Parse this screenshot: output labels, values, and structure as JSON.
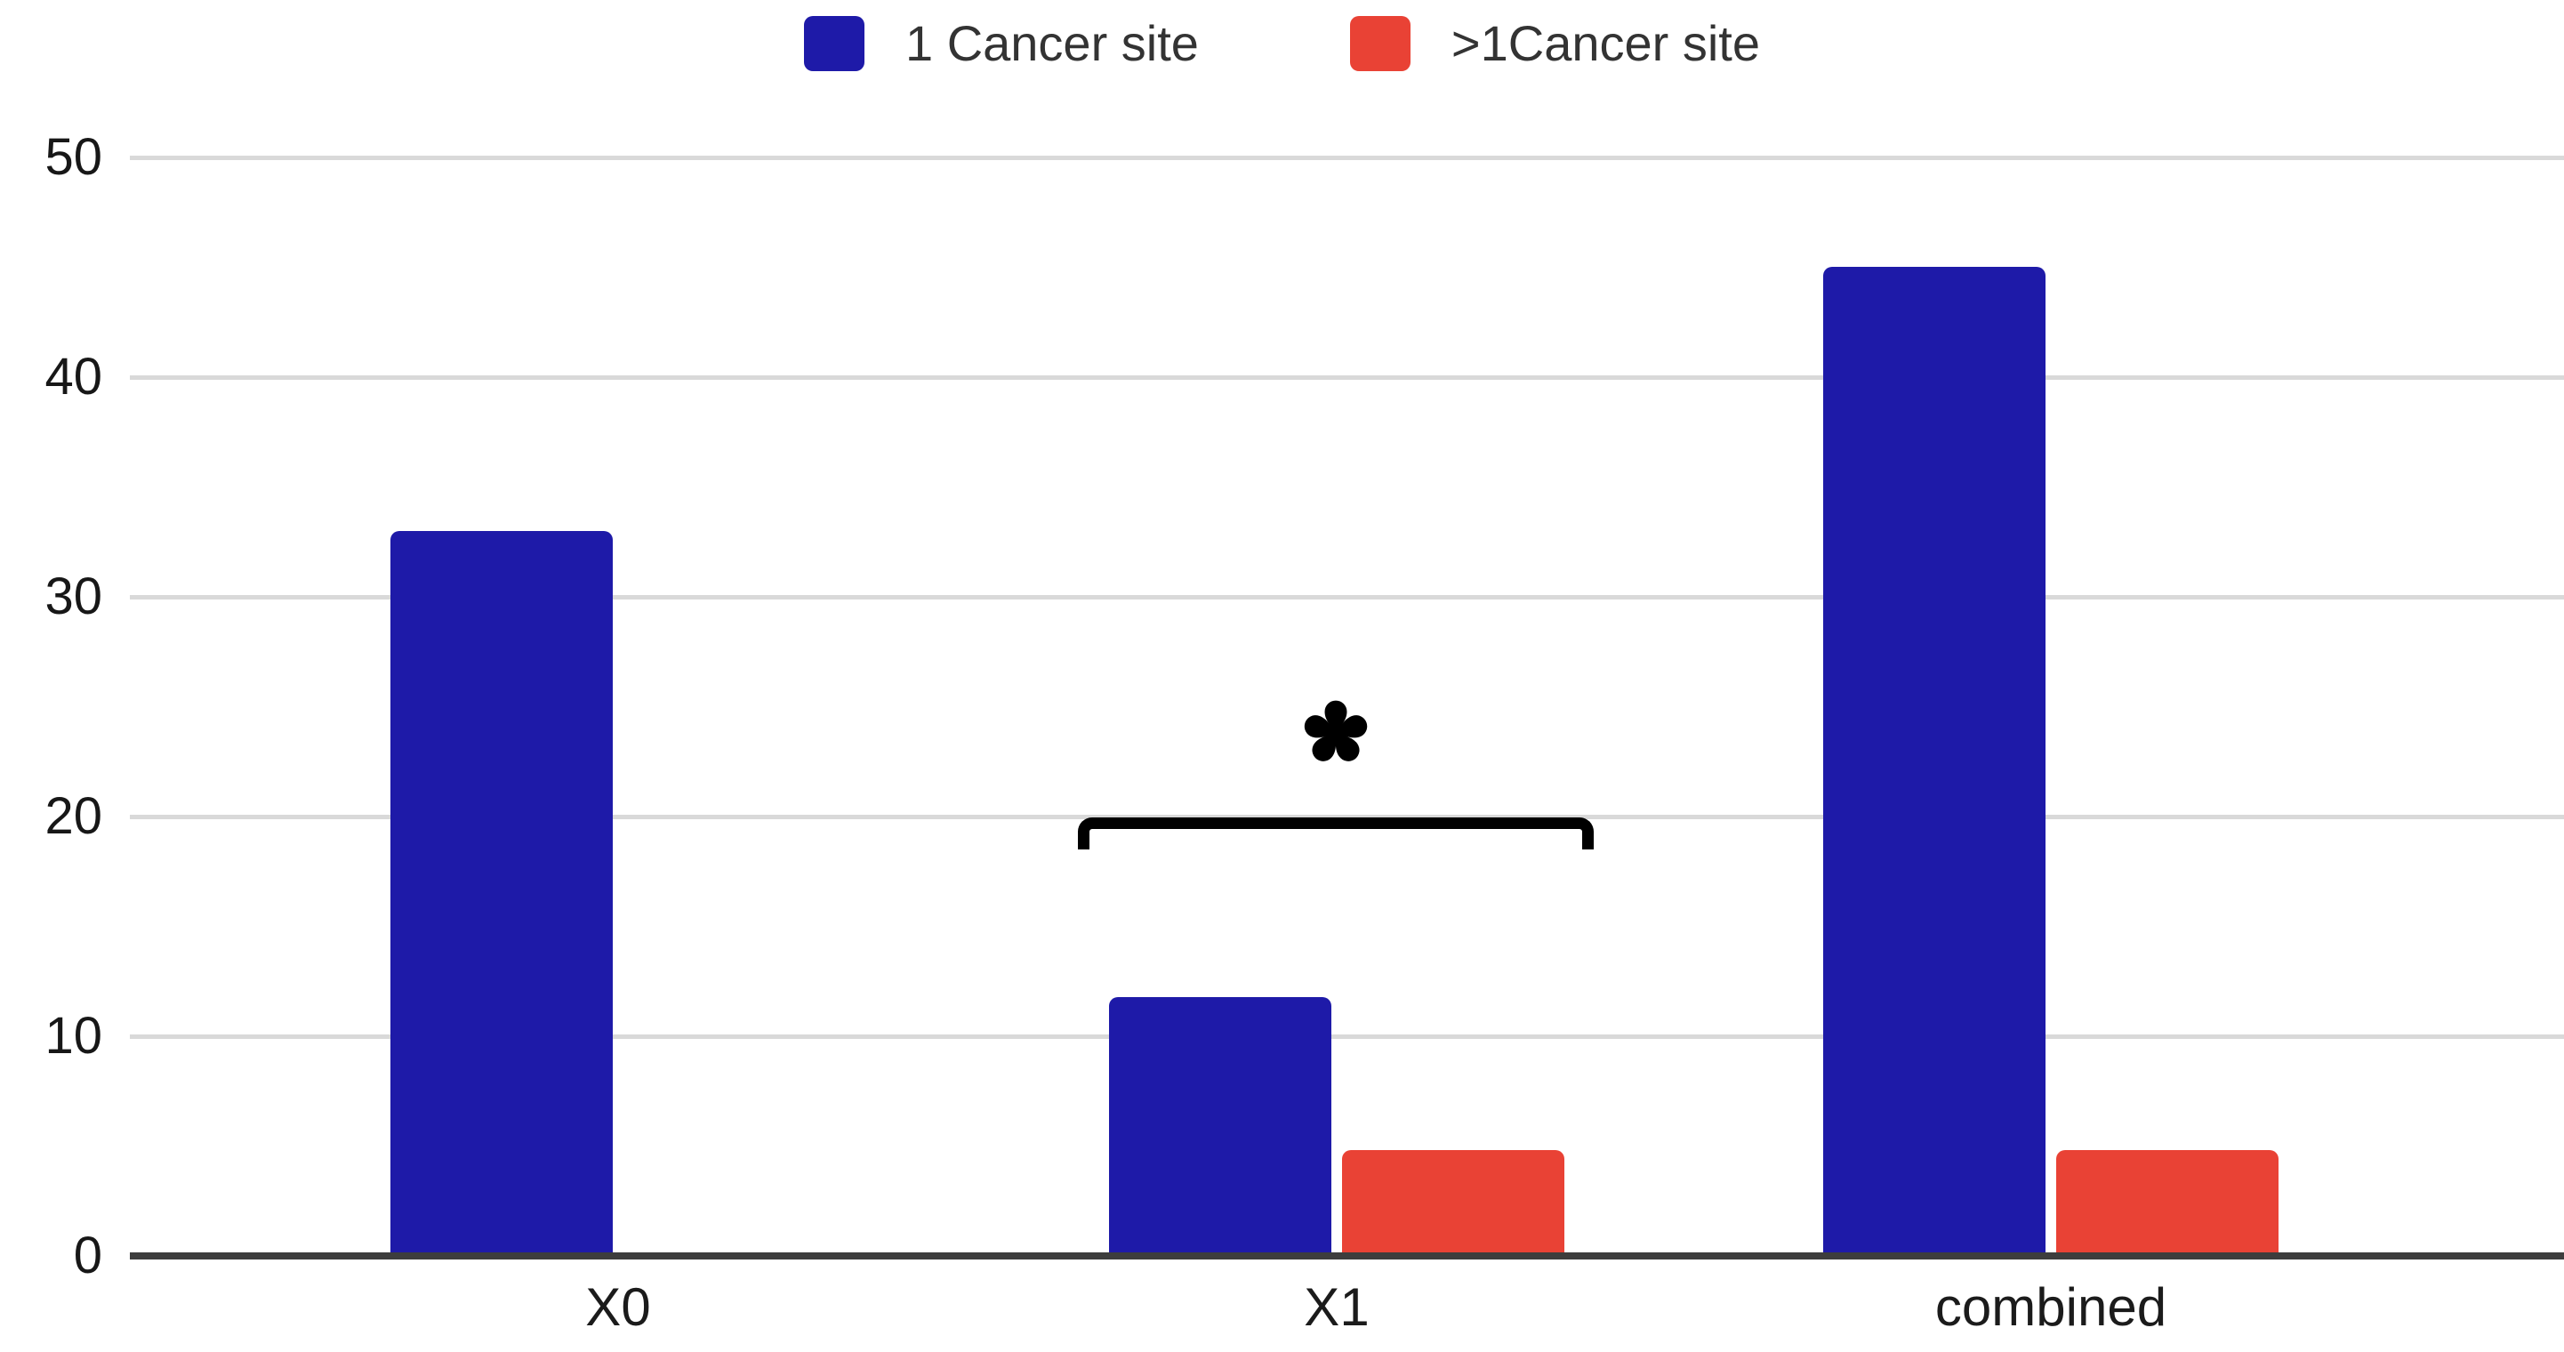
{
  "chart_data": {
    "type": "bar",
    "title": "",
    "categories": [
      "X0",
      "X1",
      "combined"
    ],
    "series": [
      {
        "name": "1 Cancer site",
        "color": "#1e1aa8",
        "values": [
          33,
          11.8,
          45
        ]
      },
      {
        "name": ">1Cancer site",
        "color": "#e94235",
        "values": [
          0,
          4.8,
          4.8
        ]
      }
    ],
    "yticks": [
      0,
      10,
      20,
      30,
      40,
      50
    ],
    "ylim": [
      0,
      50
    ],
    "grid": "horizontal-only",
    "gridline_color": "#d9d9d9",
    "axis_line_color": "#3d3d3d",
    "legend_position": "top-center",
    "annotation": {
      "symbol": "*",
      "type": "significance-bracket",
      "over_category": "X1",
      "compares": [
        "1 Cancer site",
        ">1Cancer site"
      ],
      "bracket_y_value": 19.5
    }
  },
  "legend": {
    "items": [
      {
        "label": "1 Cancer site",
        "color": "#1e1aa8"
      },
      {
        "label": ">1Cancer site",
        "color": "#e94235"
      }
    ]
  },
  "y_axis": {
    "labels": [
      "0",
      "10",
      "20",
      "30",
      "40",
      "50"
    ]
  },
  "x_axis": {
    "labels": [
      "X0",
      "X1",
      "combined"
    ]
  }
}
